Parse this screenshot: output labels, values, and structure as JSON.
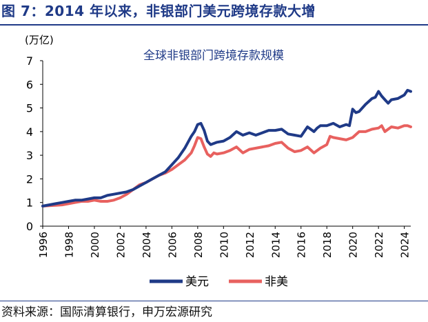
{
  "figure": {
    "title": "图 7：2014 年以来，非银部门美元跨境存款大增",
    "source": "资料来源：国际清算银行，申万宏源研究"
  },
  "chart_data": {
    "type": "line",
    "title": "全球非银部门跨境存款规模",
    "unit_label": "(万亿)",
    "xlim": [
      1996,
      2024.5
    ],
    "ylim": [
      0,
      7
    ],
    "x_ticks": [
      "1996",
      "1998",
      "2000",
      "2002",
      "2004",
      "2006",
      "2008",
      "2010",
      "2012",
      "2014",
      "2016",
      "2018",
      "2020",
      "2022",
      "2024"
    ],
    "y_ticks": [
      "0",
      "1",
      "2",
      "3",
      "4",
      "5",
      "6",
      "7"
    ],
    "legend_position": "bottom",
    "series": [
      {
        "name": "美元",
        "color": "#1f3a87",
        "x": [
          1996,
          1996.5,
          1997,
          1997.5,
          1998,
          1998.5,
          1999,
          1999.5,
          2000,
          2000.5,
          2001,
          2001.5,
          2002,
          2002.5,
          2003,
          2003.5,
          2004,
          2004.5,
          2005,
          2005.5,
          2006,
          2006.5,
          2007,
          2007.5,
          2007.75,
          2008,
          2008.25,
          2008.5,
          2008.75,
          2009,
          2009.25,
          2009.5,
          2010,
          2010.5,
          2011,
          2011.5,
          2012,
          2012.5,
          2013,
          2013.5,
          2014,
          2014.5,
          2015,
          2015.5,
          2016,
          2016.5,
          2017,
          2017.25,
          2017.5,
          2018,
          2018.5,
          2019,
          2019.5,
          2019.75,
          2020,
          2020.25,
          2020.5,
          2021,
          2021.5,
          2021.75,
          2022,
          2022.25,
          2022.5,
          2022.75,
          2023,
          2023.5,
          2024,
          2024.25,
          2024.5
        ],
        "values": [
          0.85,
          0.9,
          0.95,
          1.0,
          1.05,
          1.1,
          1.1,
          1.15,
          1.2,
          1.2,
          1.3,
          1.35,
          1.4,
          1.45,
          1.55,
          1.7,
          1.85,
          2.0,
          2.15,
          2.3,
          2.6,
          2.9,
          3.3,
          3.8,
          4.0,
          4.3,
          4.35,
          4.05,
          3.6,
          3.45,
          3.5,
          3.55,
          3.6,
          3.75,
          4.0,
          3.85,
          3.95,
          3.85,
          3.95,
          4.05,
          4.05,
          4.1,
          3.9,
          3.85,
          3.8,
          4.2,
          4.0,
          4.15,
          4.25,
          4.25,
          4.35,
          4.2,
          4.3,
          4.25,
          4.95,
          4.8,
          4.85,
          5.15,
          5.4,
          5.45,
          5.7,
          5.5,
          5.35,
          5.2,
          5.35,
          5.4,
          5.55,
          5.75,
          5.7
        ]
      },
      {
        "name": "非美",
        "color": "#e8615f",
        "x": [
          1996,
          1996.5,
          1997,
          1997.5,
          1998,
          1998.5,
          1999,
          1999.5,
          2000,
          2000.5,
          2001,
          2001.5,
          2002,
          2002.5,
          2003,
          2003.5,
          2004,
          2004.5,
          2005,
          2005.5,
          2006,
          2006.5,
          2007,
          2007.5,
          2007.75,
          2008,
          2008.25,
          2008.5,
          2008.75,
          2009,
          2009.25,
          2009.5,
          2010,
          2010.5,
          2011,
          2011.5,
          2012,
          2012.5,
          2013,
          2013.5,
          2014,
          2014.5,
          2015,
          2015.5,
          2016,
          2016.5,
          2017,
          2017.5,
          2018,
          2018.25,
          2018.5,
          2019,
          2019.5,
          2020,
          2020.5,
          2021,
          2021.5,
          2022,
          2022.25,
          2022.5,
          2022.75,
          2023,
          2023.5,
          2024,
          2024.25,
          2024.5
        ],
        "values": [
          0.85,
          0.87,
          0.88,
          0.9,
          0.95,
          1.0,
          1.05,
          1.05,
          1.1,
          1.05,
          1.05,
          1.1,
          1.2,
          1.35,
          1.55,
          1.75,
          1.85,
          2.0,
          2.15,
          2.25,
          2.4,
          2.6,
          2.8,
          3.1,
          3.4,
          3.75,
          3.7,
          3.35,
          3.05,
          2.95,
          3.1,
          3.05,
          3.1,
          3.2,
          3.35,
          3.1,
          3.25,
          3.3,
          3.35,
          3.4,
          3.5,
          3.55,
          3.3,
          3.15,
          3.2,
          3.35,
          3.1,
          3.3,
          3.45,
          3.8,
          3.75,
          3.7,
          3.65,
          3.75,
          4.0,
          4.0,
          4.1,
          4.15,
          4.25,
          4.0,
          4.1,
          4.2,
          4.15,
          4.25,
          4.25,
          4.2
        ]
      }
    ]
  }
}
